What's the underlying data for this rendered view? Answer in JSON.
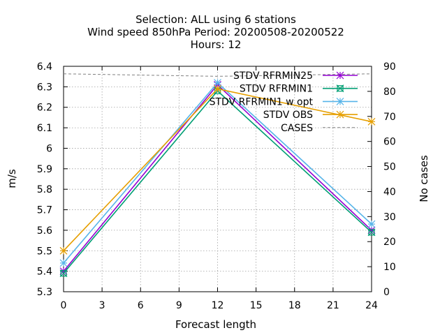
{
  "chart_data": {
    "type": "line",
    "title_lines": [
      "Selection: ALL using     6 stations",
      "Wind speed 850hPa   Period: 20200508-20200522",
      "Hours:  12"
    ],
    "xlabel": "Forecast length",
    "ylabel": "m/s",
    "y2label": "No cases",
    "xlim": [
      0,
      24
    ],
    "ylim": [
      5.3,
      6.4
    ],
    "y2lim": [
      0,
      90
    ],
    "xticks": [
      0,
      3,
      6,
      9,
      12,
      15,
      18,
      21,
      24
    ],
    "yticks": [
      5.3,
      5.4,
      5.5,
      5.6,
      5.7,
      5.8,
      5.9,
      6.0,
      6.1,
      6.2,
      6.3,
      6.4
    ],
    "ytick_labels": [
      "5.3",
      "5.4",
      "5.5",
      "5.6",
      "5.7",
      "5.8",
      "5.9",
      "6",
      "6.1",
      "6.2",
      "6.3",
      "6.4"
    ],
    "y2ticks": [
      0,
      10,
      20,
      30,
      40,
      50,
      60,
      70,
      80,
      90
    ],
    "grid": true,
    "legend_position": "top-right",
    "series": [
      {
        "name": "STDV RFRMIN25",
        "axis": "y",
        "color": "#9400d3",
        "marker": "star",
        "x": [
          0,
          12,
          24
        ],
        "values": [
          5.4,
          6.31,
          5.6
        ]
      },
      {
        "name": "STDV RFRMIN1",
        "axis": "y",
        "color": "#009e73",
        "marker": "boxx",
        "x": [
          0,
          12,
          24
        ],
        "values": [
          5.39,
          6.28,
          5.59
        ]
      },
      {
        "name": "STDV RFRMIN1 w opt",
        "axis": "y",
        "color": "#56b4e9",
        "marker": "star",
        "x": [
          0,
          12,
          24
        ],
        "values": [
          5.44,
          6.32,
          5.63
        ]
      },
      {
        "name": "STDV OBS",
        "axis": "y",
        "color": "#e69f00",
        "marker": "star",
        "x": [
          0,
          12,
          24
        ],
        "values": [
          5.5,
          6.29,
          6.13
        ]
      },
      {
        "name": "CASES",
        "axis": "y2",
        "color": "#808080",
        "dashed": true,
        "marker": "none",
        "x": [
          0,
          12,
          24
        ],
        "values": [
          87,
          86,
          87
        ]
      }
    ]
  }
}
